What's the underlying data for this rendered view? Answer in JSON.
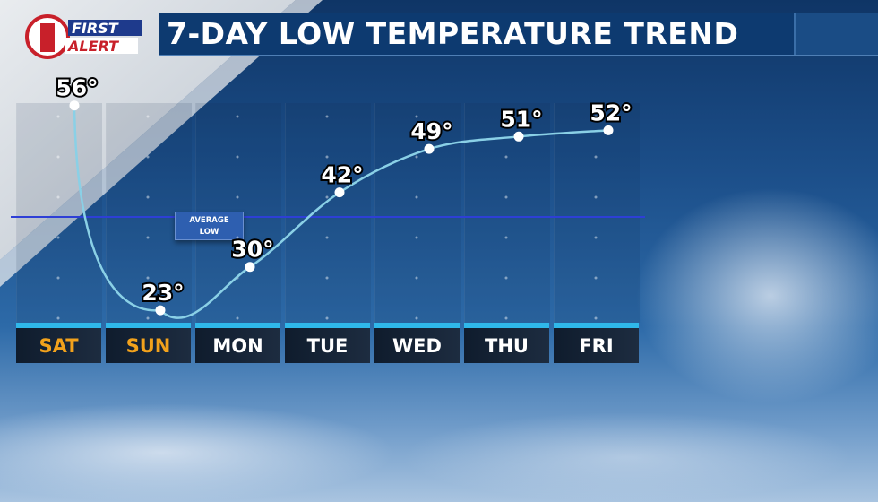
{
  "header": {
    "title": "7-DAY LOW TEMPERATURE TREND",
    "logo_text": [
      "FIRST",
      "ALERT"
    ],
    "logo_number": "1"
  },
  "colors": {
    "title_bar": "#0d3a70",
    "weekend_label": "#f2a21c",
    "day_bar": "#2fb8ea",
    "curve": "#8ad0e6",
    "average_line": "#2e3fd6"
  },
  "average": {
    "label_line1": "AVERAGE",
    "label_line2": "LOW",
    "value": 38
  },
  "chart_data": {
    "type": "line",
    "categories": [
      "SAT",
      "SUN",
      "MON",
      "TUE",
      "WED",
      "THU",
      "FRI"
    ],
    "weekend": [
      true,
      true,
      false,
      false,
      false,
      false,
      false
    ],
    "values": [
      56,
      23,
      30,
      42,
      49,
      51,
      52
    ],
    "value_labels": [
      "56°",
      "23°",
      "30°",
      "42°",
      "49°",
      "51°",
      "52°"
    ],
    "title": "7-DAY LOW TEMPERATURE TREND",
    "unit": "°F",
    "ylim": [
      21,
      73
    ],
    "grid": true,
    "smooth": true
  }
}
